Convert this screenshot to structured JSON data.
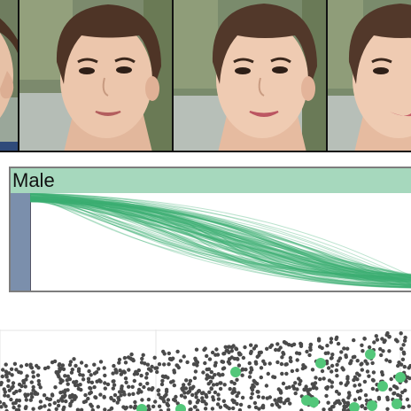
{
  "images": [
    {
      "name": "face-thumbnail-1"
    },
    {
      "name": "face-thumbnail-2"
    },
    {
      "name": "face-thumbnail-3"
    },
    {
      "name": "face-thumbnail-4"
    }
  ],
  "attribute_panel": {
    "title": "Male",
    "colors": {
      "header": "#a6d8bd",
      "handle": "#7b8fac",
      "curves": "#3cae72",
      "border": "#7d7d7d"
    }
  },
  "scatter": {
    "colors": {
      "points": "#4a4a4a",
      "highlight": "#53c77a",
      "grid": "#e6e6e6"
    }
  }
}
